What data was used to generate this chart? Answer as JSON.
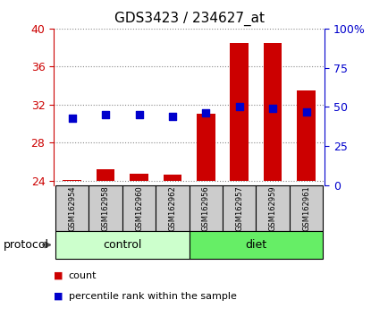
{
  "title": "GDS3423 / 234627_at",
  "samples": [
    "GSM162954",
    "GSM162958",
    "GSM162960",
    "GSM162962",
    "GSM162956",
    "GSM162957",
    "GSM162959",
    "GSM162961"
  ],
  "counts": [
    24.1,
    25.2,
    24.75,
    24.65,
    31.0,
    38.5,
    38.5,
    33.5
  ],
  "percentiles": [
    43,
    45,
    45,
    44,
    46,
    50,
    49,
    47
  ],
  "ylim_left": [
    23.5,
    40
  ],
  "ylim_right": [
    0,
    100
  ],
  "yticks_left": [
    24,
    28,
    32,
    36,
    40
  ],
  "yticks_right": [
    0,
    25,
    50,
    75,
    100
  ],
  "ytick_labels_right": [
    "0",
    "25",
    "50",
    "75",
    "100%"
  ],
  "bar_color": "#cc0000",
  "dot_color": "#0000cc",
  "bar_bottom": 24.0,
  "n_control": 4,
  "n_diet": 4,
  "control_color": "#ccffcc",
  "diet_color": "#66ee66",
  "protocol_label": "protocol",
  "control_label": "control",
  "diet_label": "diet",
  "legend_count": "count",
  "legend_percentile": "percentile rank within the sample",
  "grid_color": "#888888",
  "left_color": "#cc0000",
  "right_color": "#0000cc",
  "bar_width": 0.55,
  "dot_size": 35,
  "sample_box_color": "#cccccc"
}
